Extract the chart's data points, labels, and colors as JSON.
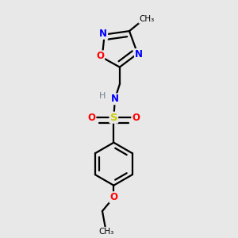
{
  "background_color": "#e8e8e8",
  "atom_colors": {
    "N": "#0000ff",
    "O": "#ff0000",
    "S": "#cccc00",
    "C": "#000000",
    "H": "#708090"
  },
  "bond_color": "#000000",
  "bond_width": 1.6,
  "fig_size": [
    3.0,
    3.0
  ],
  "dpi": 100
}
